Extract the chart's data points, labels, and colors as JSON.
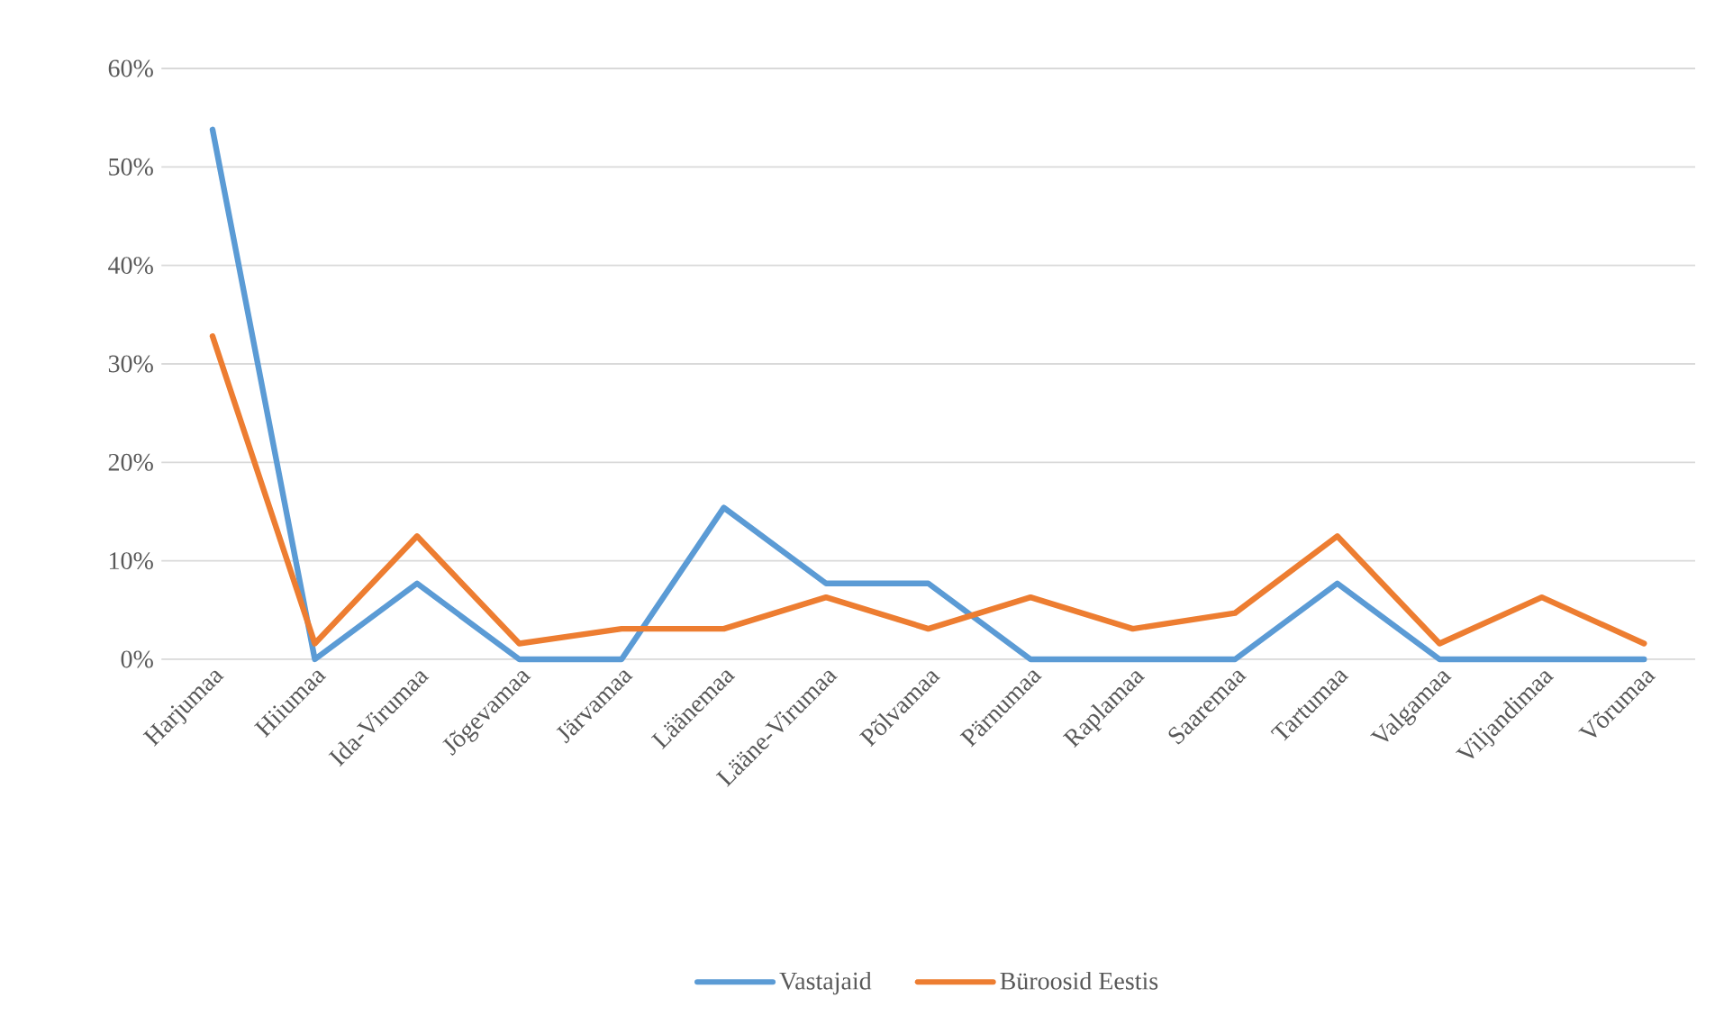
{
  "chart_data": {
    "type": "line",
    "categories": [
      "Harjumaa",
      "Hiiumaa",
      "Ida-Virumaa",
      "Jõgevamaa",
      "Järvamaa",
      "Läänemaa",
      "Lääne-Virumaa",
      "Põlvamaa",
      "Pärnumaa",
      "Raplamaa",
      "Saaremaa",
      "Tartumaa",
      "Valgamaa",
      "Viljandimaa",
      "Võrumaa"
    ],
    "series": [
      {
        "name": "Vastajaid",
        "color": "#5b9bd5",
        "values": [
          53.8,
          0,
          7.7,
          0,
          0,
          15.4,
          7.7,
          7.7,
          0,
          0,
          0,
          7.7,
          0,
          0,
          0
        ]
      },
      {
        "name": "Büroosid Eestis",
        "color": "#ed7d31",
        "values": [
          32.8,
          1.6,
          12.5,
          1.6,
          3.1,
          3.1,
          6.3,
          3.1,
          6.3,
          3.1,
          4.7,
          12.5,
          1.6,
          6.3,
          1.6
        ]
      }
    ],
    "ylim": [
      0,
      60
    ],
    "yticks": [
      {
        "value": 0,
        "label": "0%"
      },
      {
        "value": 10,
        "label": "10%"
      },
      {
        "value": 20,
        "label": "20%"
      },
      {
        "value": 30,
        "label": "30%"
      },
      {
        "value": 40,
        "label": "40%"
      },
      {
        "value": 50,
        "label": "50%"
      },
      {
        "value": 60,
        "label": "60%"
      }
    ],
    "grid": "y",
    "legend": "bottom",
    "line_style": "solid"
  }
}
